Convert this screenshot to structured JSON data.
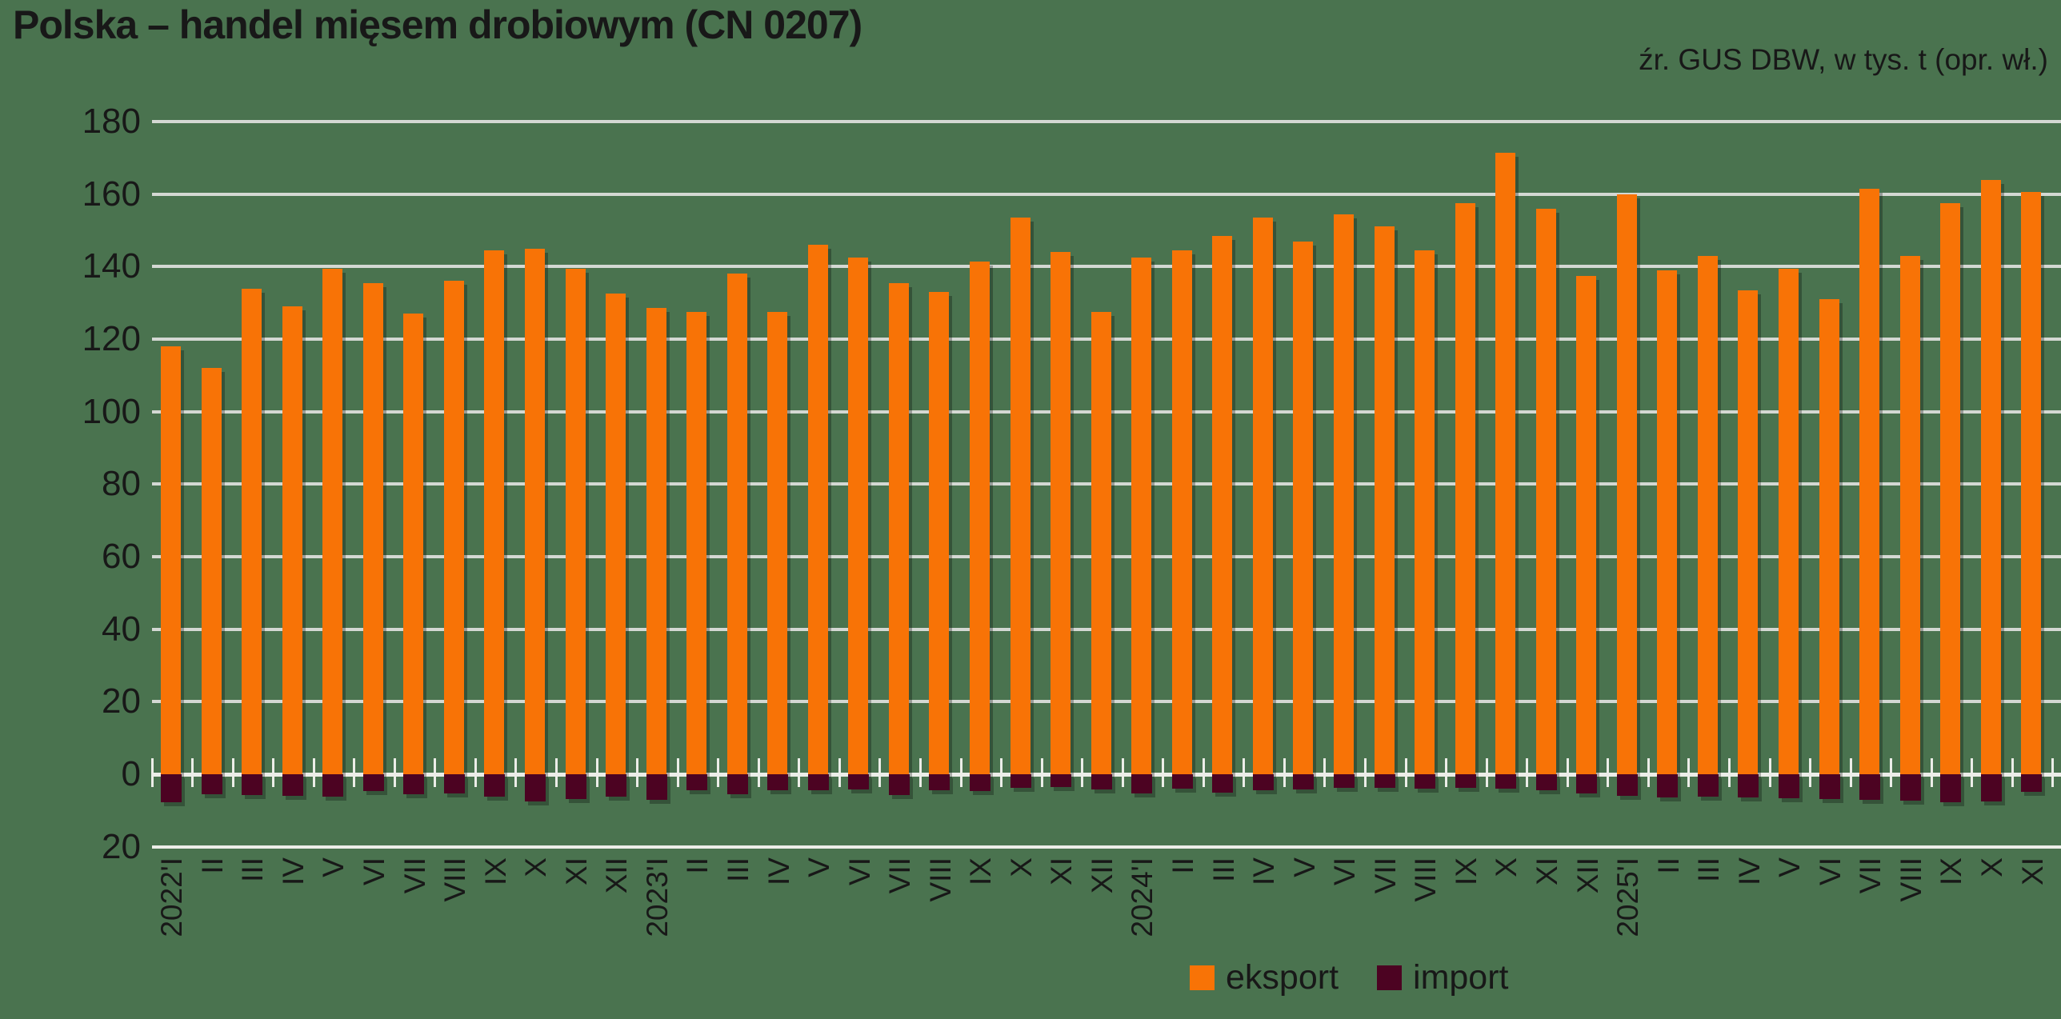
{
  "title": "Polska – handel mięsem drobiowym (CN 0207)",
  "source_note": "źr. GUS DBW, w tys. t (opr. wł.)",
  "legend": {
    "eksport": "eksport",
    "import": "import"
  },
  "colors": {
    "background": "#4A734F",
    "eksport": "#F87306",
    "import": "#4C0322",
    "gridline": "#D4D8D3",
    "axis": "#ECEDE8",
    "text": "#181818"
  },
  "chart_data": {
    "type": "bar",
    "title": "Polska – handel mięsem drobiowym (CN 0207)",
    "unit": "tys. t",
    "grid": true,
    "legend_position": "bottom",
    "ylim": [
      -20,
      180
    ],
    "y_ticks": [
      {
        "value": 180,
        "label": "180"
      },
      {
        "value": 160,
        "label": "160"
      },
      {
        "value": 140,
        "label": "140"
      },
      {
        "value": 120,
        "label": "120"
      },
      {
        "value": 100,
        "label": "100"
      },
      {
        "value": 80,
        "label": "80"
      },
      {
        "value": 60,
        "label": "60"
      },
      {
        "value": 40,
        "label": "40"
      },
      {
        "value": 20,
        "label": "20"
      },
      {
        "value": 0,
        "label": "0"
      },
      {
        "value": -20,
        "label": "20"
      }
    ],
    "categories": [
      "2022'I",
      "II",
      "III",
      "IV",
      "V",
      "VI",
      "VII",
      "VIII",
      "IX",
      "X",
      "XI",
      "XII",
      "2023'I",
      "II",
      "III",
      "IV",
      "V",
      "VI",
      "VII",
      "VIII",
      "IX",
      "X",
      "XI",
      "XII",
      "2024'I",
      "II",
      "III",
      "IV",
      "V",
      "VI",
      "VII",
      "VIII",
      "IX",
      "X",
      "XI",
      "XII",
      "2025'I",
      "II",
      "III",
      "IV",
      "V",
      "VI",
      "VII",
      "VIII",
      "IX",
      "X",
      "XI"
    ],
    "series": [
      {
        "name": "eksport",
        "color": "#F87306",
        "values": [
          118,
          112,
          134,
          129,
          139.5,
          135.5,
          127,
          136,
          144.5,
          145,
          139.5,
          132.5,
          128.5,
          127.5,
          138,
          127.5,
          146,
          142.5,
          135.5,
          133,
          141.5,
          153.5,
          144,
          127.5,
          142.5,
          144.5,
          148.5,
          153.5,
          147,
          154.5,
          151,
          144.5,
          157.5,
          171.5,
          156,
          137.5,
          160,
          139,
          143,
          133.5,
          139.5,
          131,
          161.5,
          143,
          157.5,
          164,
          160.5
        ]
      },
      {
        "name": "import",
        "color": "#4C0322",
        "values": [
          -7.8,
          -5.6,
          -5.8,
          -5.9,
          -6.1,
          -4.7,
          -5.6,
          -5.2,
          -6.1,
          -7.4,
          -6.8,
          -6.1,
          -7.0,
          -4.5,
          -5.5,
          -4.4,
          -4.4,
          -4.1,
          -5.8,
          -4.4,
          -4.6,
          -3.7,
          -3.6,
          -4.1,
          -5.2,
          -3.9,
          -5.0,
          -4.4,
          -4.3,
          -3.7,
          -3.7,
          -3.9,
          -3.8,
          -3.9,
          -4.4,
          -5.3,
          -6.0,
          -6.3,
          -6.2,
          -6.3,
          -6.6,
          -6.8,
          -7.0,
          -7.2,
          -7.8,
          -7.6,
          -4.8
        ]
      }
    ]
  }
}
